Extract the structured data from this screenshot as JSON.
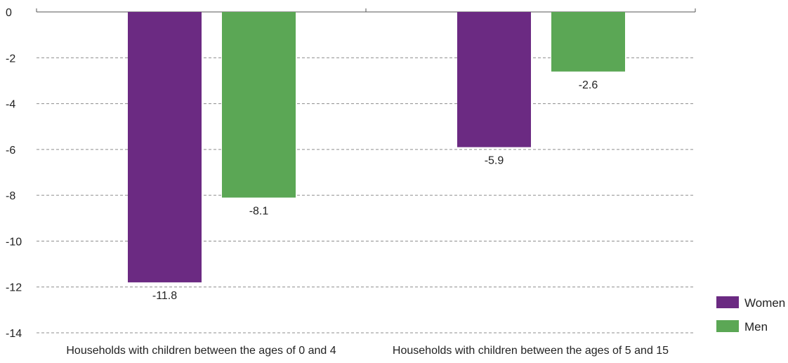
{
  "chart_data": {
    "type": "bar",
    "categories": [
      "Households with children between the ages of 0 and 4",
      "Households with children between the ages of 5 and 15"
    ],
    "series": [
      {
        "name": "Women",
        "color": "#6b2a82",
        "values": [
          -11.8,
          -5.9
        ],
        "labels": [
          "-11.8",
          "-5.9"
        ]
      },
      {
        "name": "Men",
        "color": "#5ba755",
        "values": [
          -8.1,
          -2.6
        ],
        "labels": [
          "-8.1",
          "-2.6"
        ]
      }
    ],
    "yticks": [
      "0",
      "-2",
      "-4",
      "-6",
      "-8",
      "-10",
      "-12",
      "-14"
    ],
    "ylim": [
      -14,
      0
    ],
    "grid": true,
    "legend_position": "bottom-right",
    "title": "",
    "xlabel": "",
    "ylabel": ""
  }
}
